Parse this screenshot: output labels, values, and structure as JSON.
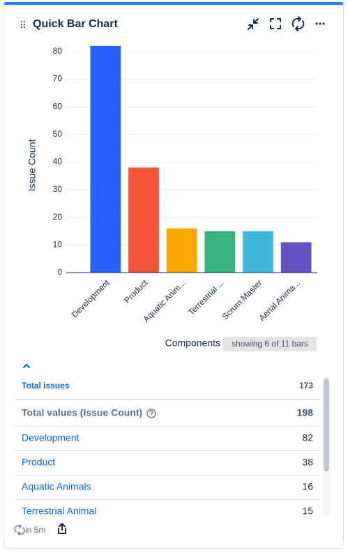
{
  "header": {
    "title": "Quick Bar Chart"
  },
  "chart_data": {
    "type": "bar",
    "y_label": "Issue Count",
    "x_label": "Components",
    "bar_count_badge": "showing 6 of 11 bars",
    "categories": [
      "Development",
      "Product",
      "Aquatic Anim...",
      "Terrestrial ...",
      "Scrum Master",
      "Aerial Anima..."
    ],
    "values": [
      82,
      38,
      16,
      15,
      15,
      11
    ],
    "colors": [
      "#2962ff",
      "#f5553a",
      "#f7a800",
      "#36b37e",
      "#40b8dc",
      "#6554c0"
    ],
    "ylim": [
      0,
      85
    ],
    "yticks": [
      0,
      10,
      20,
      30,
      40,
      50,
      60,
      70,
      80
    ],
    "grid": true
  },
  "table": {
    "total": {
      "label": "Total issues",
      "value": 173
    },
    "sum": {
      "label": "Total values (Issue Count)",
      "value": 198
    },
    "rows": [
      {
        "label": "Development",
        "value": 82
      },
      {
        "label": "Product",
        "value": 38
      },
      {
        "label": "Aquatic Animals",
        "value": 16
      },
      {
        "label": "Terrestrial Animal",
        "value": 15
      }
    ]
  },
  "footer": {
    "refresh": "in 5m"
  }
}
